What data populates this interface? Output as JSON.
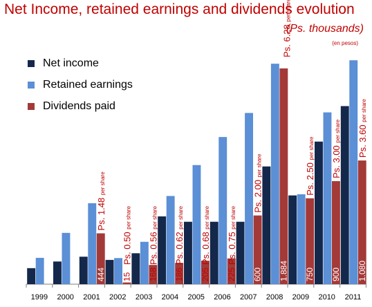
{
  "header": {
    "title": "Net Income, retained earnings and dividends evolution",
    "subtitle": "(Ps. thousands)",
    "unit_note": "(en pesos)"
  },
  "colors": {
    "net_income": "#14284b",
    "retained_earnings": "#5b8fd6",
    "dividends_paid": "#a33a38",
    "title": "#c00000",
    "annotation": "#c00000"
  },
  "chart_data": {
    "type": "bar",
    "title": "Net Income, retained earnings and dividends evolution",
    "subtitle": "(Ps. thousands)",
    "legend_position": "top-left",
    "grid": false,
    "ylim": [
      0,
      1950
    ],
    "categories": [
      "1999",
      "2000",
      "2001",
      "2002",
      "2003",
      "2004",
      "2005",
      "2006",
      "2007",
      "2008",
      "2009",
      "2010",
      "2011"
    ],
    "series": [
      {
        "name": "Net income",
        "color": "#14284b",
        "values": [
          140,
          198,
          240,
          212,
          270,
          592,
          545,
          545,
          545,
          1028,
          775,
          1245,
          1555
        ]
      },
      {
        "name": "Retained earnings",
        "color": "#5b8fd6",
        "values": [
          230,
          448,
          707,
          228,
          370,
          770,
          1040,
          1285,
          1495,
          1925,
          785,
          1500,
          1955
        ]
      },
      {
        "name": "Dividends paid",
        "color": "#a33a38",
        "values": [
          null,
          null,
          444,
          15,
          168,
          186,
          205,
          225,
          600,
          1884,
          750,
          900,
          1080
        ]
      }
    ],
    "data_labels": [
      "",
      "",
      "444",
      "15",
      "168",
      "186",
      "205",
      "225",
      "600",
      "1.884",
      "750",
      "900",
      "1.080"
    ],
    "per_share_annotations": [
      "",
      "",
      "Ps. 1.48",
      "Ps. 0.50",
      "Ps. 0.56",
      "Ps. 0.62",
      "Ps. 0.68",
      "Ps. 0.75",
      "Ps. 2.00",
      "Ps. 6.28",
      "Ps. 2.50",
      "Ps. 3.00",
      "Ps. 3.60"
    ],
    "per_share_suffix": "per share"
  }
}
